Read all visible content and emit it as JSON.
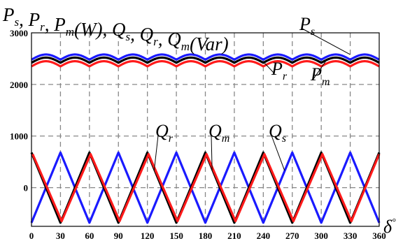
{
  "chart_data": {
    "type": "line",
    "title_segments": [
      {
        "t": "P",
        "sub": "s"
      },
      {
        "t": ", "
      },
      {
        "t": "P",
        "sub": "r"
      },
      {
        "t": ", "
      },
      {
        "t": "P",
        "sub": "m"
      },
      {
        "t": "(",
        "up": true
      },
      {
        "t": "W"
      },
      {
        "t": ")",
        "up": true
      },
      {
        "t": ", "
      },
      {
        "t": "Q",
        "sub": "s"
      },
      {
        "t": ", "
      },
      {
        "t": "Q",
        "sub": "r"
      },
      {
        "t": ", "
      },
      {
        "t": "Q",
        "sub": "m"
      },
      {
        "t": "(",
        "up": true
      },
      {
        "t": "Var"
      },
      {
        "t": ")",
        "up": true
      }
    ],
    "xlabel": {
      "t": "δ",
      "sup": "°"
    },
    "xlim": [
      0,
      360
    ],
    "ylim": [
      -750,
      3000
    ],
    "x_ticks": [
      0,
      30,
      60,
      90,
      120,
      150,
      180,
      210,
      240,
      270,
      300,
      330,
      360
    ],
    "y_ticks": [
      0,
      1000,
      2000,
      3000
    ],
    "grid": true,
    "power_ripple": {
      "period_deg": 30,
      "min_at_deg": 0,
      "peak_to_trough": 100
    },
    "series": [
      {
        "name": "P",
        "sub": "s",
        "color": "#1a1aff",
        "kind": "ripple",
        "baseline": 2530
      },
      {
        "name": "P",
        "sub": "m",
        "color": "#000000",
        "kind": "ripple",
        "baseline": 2470
      },
      {
        "name": "P",
        "sub": "r",
        "color": "#ff1a1a",
        "kind": "ripple",
        "baseline": 2400
      },
      {
        "name": "Q",
        "sub": "s",
        "color": "#1a1aff",
        "kind": "triangle",
        "high": 680,
        "low": -680,
        "peaks_deg": [
          30,
          90,
          150,
          210,
          270,
          330
        ],
        "troughs_deg": [
          0,
          60,
          120,
          180,
          240,
          300,
          360
        ],
        "x_shift": 0
      },
      {
        "name": "Q",
        "sub": "m",
        "color": "#000000",
        "kind": "triangle",
        "high": 680,
        "low": -680,
        "peaks_deg": [
          0,
          60,
          120,
          180,
          240,
          300,
          360
        ],
        "troughs_deg": [
          30,
          90,
          150,
          210,
          270,
          330
        ],
        "x_shift": 0
      },
      {
        "name": "Q",
        "sub": "r",
        "color": "#ff1a1a",
        "kind": "triangle",
        "high": 650,
        "low": -650,
        "peaks_deg": [
          0,
          60,
          120,
          180,
          240,
          300,
          360
        ],
        "troughs_deg": [
          30,
          90,
          150,
          210,
          270,
          330
        ],
        "x_shift": 1.2
      }
    ],
    "annotations": [
      {
        "series": "P_s",
        "text": "P",
        "sub": "s",
        "at_x": 330,
        "at_y": 2580
      },
      {
        "series": "P_r",
        "text": "P",
        "sub": "r",
        "at_x": 241,
        "at_y": 2420
      },
      {
        "series": "P_m",
        "text": "P",
        "sub": "m",
        "at_x": 305,
        "at_y": 2460
      },
      {
        "series": "Q_r",
        "text": "Q",
        "sub": "r",
        "at_x": 127,
        "at_y": 330
      },
      {
        "series": "Q_m",
        "text": "Q",
        "sub": "m",
        "at_x": 187,
        "at_y": 330
      },
      {
        "series": "Q_s",
        "text": "Q",
        "sub": "s",
        "at_x": 262,
        "at_y": 330
      }
    ]
  }
}
